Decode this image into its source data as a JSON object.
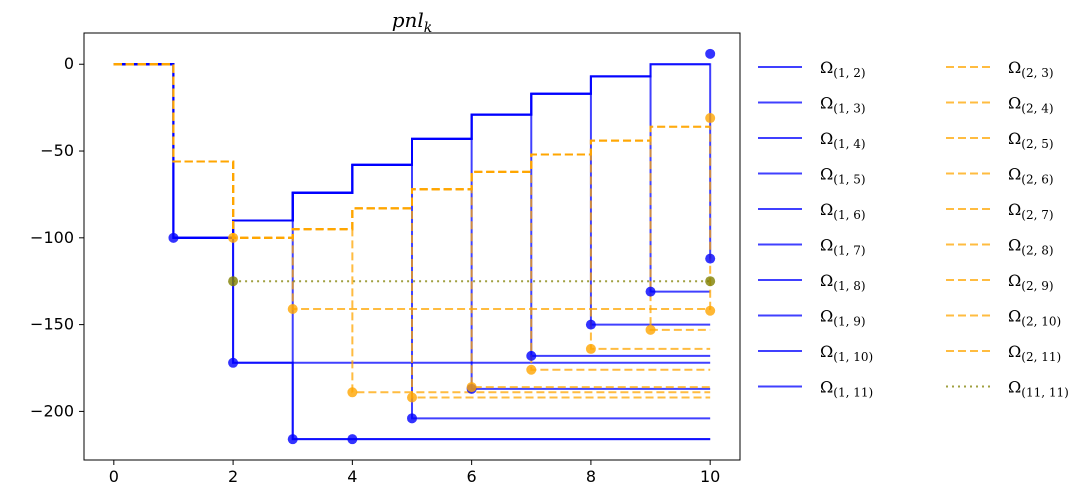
{
  "chart_data": {
    "type": "line",
    "title": "pnl",
    "title_subscript": "k",
    "xlabel": "",
    "ylabel": "",
    "xlim": [
      -0.5,
      10.5
    ],
    "ylim": [
      -228,
      18
    ],
    "xticks": [
      0,
      2,
      4,
      6,
      8,
      10
    ],
    "yticks": [
      0,
      -50,
      -100,
      -150,
      -200
    ],
    "xtick_labels": [
      "0",
      "2",
      "4",
      "6",
      "8",
      "10"
    ],
    "ytick_labels": [
      "0",
      "−50",
      "−100",
      "−150",
      "−200"
    ],
    "grid": false,
    "legend_position": "outside-right",
    "colors": {
      "blue": "#0000ff",
      "orange": "#ffa500",
      "olive": "#808000"
    },
    "series": [
      {
        "name": "Ω",
        "sub": "(1, 2)",
        "color": "blue",
        "style": "solid",
        "x": [
          0,
          1,
          2,
          3,
          4,
          5,
          6,
          7,
          8,
          9,
          10
        ],
        "y": [
          0,
          -100,
          -90,
          -74,
          -58,
          -43,
          -29,
          -17,
          -7,
          0,
          0
        ],
        "markers": [
          [
            1,
            -100
          ],
          [
            10,
            6
          ]
        ]
      },
      {
        "name": "Ω",
        "sub": "(1, 3)",
        "color": "blue",
        "style": "solid",
        "x": [
          0,
          1,
          2,
          3,
          4,
          5,
          6,
          7,
          8,
          9,
          10
        ],
        "y": [
          0,
          -100,
          -172,
          -172,
          -172,
          -172,
          -172,
          -172,
          -172,
          -172,
          -172
        ],
        "markers": [
          [
            2,
            -172
          ]
        ]
      },
      {
        "name": "Ω",
        "sub": "(1, 4)",
        "color": "blue",
        "style": "solid",
        "x": [
          0,
          1,
          2,
          3,
          4,
          5,
          6,
          7,
          8,
          9,
          10
        ],
        "y": [
          0,
          -100,
          -172,
          -216,
          -216,
          -216,
          -216,
          -216,
          -216,
          -216,
          -216
        ],
        "markers": [
          [
            3,
            -216
          ]
        ]
      },
      {
        "name": "Ω",
        "sub": "(1, 5)",
        "color": "blue",
        "style": "solid",
        "x": [
          0,
          1,
          2,
          3,
          4,
          5,
          6,
          7,
          8,
          9,
          10
        ],
        "y": [
          0,
          -100,
          -90,
          -216,
          -216,
          -216,
          -216,
          -216,
          -216,
          -216,
          -216
        ],
        "markers": [
          [
            4,
            -216
          ]
        ]
      },
      {
        "name": "Ω",
        "sub": "(1, 6)",
        "color": "blue",
        "style": "solid",
        "x": [
          0,
          1,
          2,
          3,
          4,
          5,
          6,
          7,
          8,
          9,
          10
        ],
        "y": [
          0,
          -100,
          -90,
          -74,
          -58,
          -204,
          -204,
          -204,
          -204,
          -204,
          -204
        ],
        "markers": [
          [
            5,
            -204
          ]
        ]
      },
      {
        "name": "Ω",
        "sub": "(1, 7)",
        "color": "blue",
        "style": "solid",
        "x": [
          0,
          1,
          2,
          3,
          4,
          5,
          6,
          7,
          8,
          9,
          10
        ],
        "y": [
          0,
          -100,
          -90,
          -74,
          -58,
          -43,
          -187,
          -187,
          -187,
          -187,
          -187
        ],
        "markers": [
          [
            6,
            -187
          ]
        ]
      },
      {
        "name": "Ω",
        "sub": "(1, 8)",
        "color": "blue",
        "style": "solid",
        "x": [
          0,
          1,
          2,
          3,
          4,
          5,
          6,
          7,
          8,
          9,
          10
        ],
        "y": [
          0,
          -100,
          -90,
          -74,
          -58,
          -43,
          -29,
          -168,
          -168,
          -168,
          -168
        ],
        "markers": [
          [
            7,
            -168
          ]
        ]
      },
      {
        "name": "Ω",
        "sub": "(1, 9)",
        "color": "blue",
        "style": "solid",
        "x": [
          0,
          1,
          2,
          3,
          4,
          5,
          6,
          7,
          8,
          9,
          10
        ],
        "y": [
          0,
          -100,
          -90,
          -74,
          -58,
          -43,
          -29,
          -17,
          -150,
          -150,
          -150
        ],
        "markers": [
          [
            8,
            -150
          ]
        ]
      },
      {
        "name": "Ω",
        "sub": "(1, 10)",
        "color": "blue",
        "style": "solid",
        "x": [
          0,
          1,
          2,
          3,
          4,
          5,
          6,
          7,
          8,
          9,
          10
        ],
        "y": [
          0,
          -100,
          -90,
          -74,
          -58,
          -43,
          -29,
          -17,
          -7,
          -131,
          -131
        ],
        "markers": [
          [
            9,
            -131
          ]
        ]
      },
      {
        "name": "Ω",
        "sub": "(1, 11)",
        "color": "blue",
        "style": "solid",
        "x": [
          0,
          1,
          2,
          3,
          4,
          5,
          6,
          7,
          8,
          9,
          10
        ],
        "y": [
          0,
          -100,
          -90,
          -74,
          -58,
          -43,
          -29,
          -17,
          -7,
          0,
          -112
        ],
        "markers": [
          [
            10,
            -112
          ]
        ]
      },
      {
        "name": "Ω",
        "sub": "(2, 3)",
        "color": "orange",
        "style": "dashed",
        "x": [
          0,
          1,
          2,
          3,
          4,
          5,
          6,
          7,
          8,
          9,
          10
        ],
        "y": [
          0,
          -56,
          -100,
          -95,
          -83,
          -72,
          -62,
          -52,
          -44,
          -36,
          -36
        ],
        "markers": [
          [
            2,
            -100
          ],
          [
            10,
            -31
          ]
        ]
      },
      {
        "name": "Ω",
        "sub": "(2, 4)",
        "color": "orange",
        "style": "dashed",
        "x": [
          0,
          1,
          2,
          3,
          4,
          5,
          6,
          7,
          8,
          9,
          10
        ],
        "y": [
          0,
          -56,
          -100,
          -141,
          -141,
          -141,
          -141,
          -141,
          -141,
          -141,
          -141
        ],
        "markers": [
          [
            3,
            -141
          ]
        ]
      },
      {
        "name": "Ω",
        "sub": "(2, 5)",
        "color": "orange",
        "style": "dashed",
        "x": [
          0,
          1,
          2,
          3,
          4,
          5,
          6,
          7,
          8,
          9,
          10
        ],
        "y": [
          0,
          -56,
          -100,
          -95,
          -189,
          -189,
          -189,
          -189,
          -189,
          -189,
          -189
        ],
        "markers": [
          [
            4,
            -189
          ]
        ]
      },
      {
        "name": "Ω",
        "sub": "(2, 6)",
        "color": "orange",
        "style": "dashed",
        "x": [
          0,
          1,
          2,
          3,
          4,
          5,
          6,
          7,
          8,
          9,
          10
        ],
        "y": [
          0,
          -56,
          -100,
          -95,
          -83,
          -192,
          -192,
          -192,
          -192,
          -192,
          -192
        ],
        "markers": [
          [
            5,
            -192
          ]
        ]
      },
      {
        "name": "Ω",
        "sub": "(2, 7)",
        "color": "orange",
        "style": "dashed",
        "x": [
          0,
          1,
          2,
          3,
          4,
          5,
          6,
          7,
          8,
          9,
          10
        ],
        "y": [
          0,
          -56,
          -100,
          -95,
          -83,
          -72,
          -186,
          -186,
          -186,
          -186,
          -186
        ],
        "markers": [
          [
            6,
            -186
          ]
        ]
      },
      {
        "name": "Ω",
        "sub": "(2, 8)",
        "color": "orange",
        "style": "dashed",
        "x": [
          0,
          1,
          2,
          3,
          4,
          5,
          6,
          7,
          8,
          9,
          10
        ],
        "y": [
          0,
          -56,
          -100,
          -95,
          -83,
          -72,
          -62,
          -176,
          -176,
          -176,
          -176
        ],
        "markers": [
          [
            7,
            -176
          ]
        ]
      },
      {
        "name": "Ω",
        "sub": "(2, 9)",
        "color": "orange",
        "style": "dashed",
        "x": [
          0,
          1,
          2,
          3,
          4,
          5,
          6,
          7,
          8,
          9,
          10
        ],
        "y": [
          0,
          -56,
          -100,
          -95,
          -83,
          -72,
          -62,
          -52,
          -164,
          -164,
          -164
        ],
        "markers": [
          [
            8,
            -164
          ]
        ]
      },
      {
        "name": "Ω",
        "sub": "(2, 10)",
        "color": "orange",
        "style": "dashed",
        "x": [
          0,
          1,
          2,
          3,
          4,
          5,
          6,
          7,
          8,
          9,
          10
        ],
        "y": [
          0,
          -56,
          -100,
          -95,
          -83,
          -72,
          -62,
          -52,
          -44,
          -153,
          -153
        ],
        "markers": [
          [
            9,
            -153
          ]
        ]
      },
      {
        "name": "Ω",
        "sub": "(2, 11)",
        "color": "orange",
        "style": "dashed",
        "x": [
          0,
          1,
          2,
          3,
          4,
          5,
          6,
          7,
          8,
          9,
          10
        ],
        "y": [
          0,
          -56,
          -100,
          -95,
          -83,
          -72,
          -62,
          -52,
          -44,
          -36,
          -142
        ],
        "markers": [
          [
            10,
            -142
          ]
        ]
      },
      {
        "name": "Ω",
        "sub": "(11, 11)",
        "color": "olive",
        "style": "dotted",
        "x": [
          2,
          10
        ],
        "y": [
          -125,
          -125
        ],
        "markers": [
          [
            2,
            -125
          ],
          [
            10,
            -125
          ]
        ]
      }
    ]
  }
}
